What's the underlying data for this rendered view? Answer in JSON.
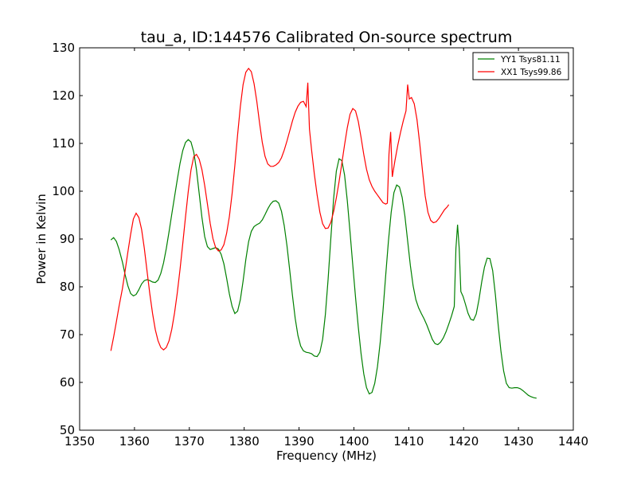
{
  "chart_data": {
    "type": "line",
    "title": "tau_a, ID:144576 Calibrated On-source spectrum",
    "xlabel": "Frequency (MHz)",
    "ylabel": "Power in Kelvin",
    "xlim": [
      1350,
      1440
    ],
    "ylim": [
      50,
      130
    ],
    "xticks": [
      1350,
      1360,
      1370,
      1380,
      1390,
      1400,
      1410,
      1420,
      1430,
      1440
    ],
    "yticks": [
      50,
      60,
      70,
      80,
      90,
      100,
      110,
      120,
      130
    ],
    "grid": false,
    "legend_position": "top-right",
    "series": [
      {
        "name": "YY1 Tsys81.11",
        "color": "#008000",
        "points": [
          [
            1355.7,
            89.8
          ],
          [
            1356.2,
            90.3
          ],
          [
            1356.7,
            89.5
          ],
          [
            1357.2,
            87.8
          ],
          [
            1357.8,
            85.2
          ],
          [
            1358.3,
            82.5
          ],
          [
            1358.8,
            80.2
          ],
          [
            1359.3,
            78.6
          ],
          [
            1359.8,
            78.1
          ],
          [
            1360.3,
            78.4
          ],
          [
            1360.8,
            79.4
          ],
          [
            1361.3,
            80.6
          ],
          [
            1361.8,
            81.3
          ],
          [
            1362.3,
            81.5
          ],
          [
            1362.8,
            81.3
          ],
          [
            1363.3,
            81.0
          ],
          [
            1363.8,
            80.9
          ],
          [
            1364.3,
            81.4
          ],
          [
            1364.8,
            82.8
          ],
          [
            1365.3,
            85.0
          ],
          [
            1365.8,
            88.0
          ],
          [
            1366.3,
            91.5
          ],
          [
            1366.8,
            95.2
          ],
          [
            1367.3,
            98.8
          ],
          [
            1367.8,
            102.4
          ],
          [
            1368.3,
            105.8
          ],
          [
            1368.8,
            108.5
          ],
          [
            1369.3,
            110.2
          ],
          [
            1369.8,
            110.8
          ],
          [
            1370.3,
            110.3
          ],
          [
            1370.8,
            108.2
          ],
          [
            1371.3,
            104.5
          ],
          [
            1371.8,
            99.5
          ],
          [
            1372.3,
            94.5
          ],
          [
            1372.8,
            90.5
          ],
          [
            1373.3,
            88.4
          ],
          [
            1373.8,
            87.8
          ],
          [
            1374.3,
            88.0
          ],
          [
            1374.8,
            88.2
          ],
          [
            1375.3,
            87.9
          ],
          [
            1375.8,
            86.8
          ],
          [
            1376.3,
            84.8
          ],
          [
            1376.8,
            81.8
          ],
          [
            1377.3,
            78.5
          ],
          [
            1377.8,
            75.9
          ],
          [
            1378.3,
            74.4
          ],
          [
            1378.8,
            74.9
          ],
          [
            1379.3,
            77.3
          ],
          [
            1379.8,
            81.2
          ],
          [
            1380.3,
            85.7
          ],
          [
            1380.8,
            89.4
          ],
          [
            1381.3,
            91.6
          ],
          [
            1381.8,
            92.6
          ],
          [
            1382.3,
            93.0
          ],
          [
            1382.8,
            93.3
          ],
          [
            1383.3,
            94.0
          ],
          [
            1383.8,
            95.1
          ],
          [
            1384.3,
            96.3
          ],
          [
            1384.8,
            97.3
          ],
          [
            1385.3,
            97.9
          ],
          [
            1385.8,
            98.0
          ],
          [
            1386.3,
            97.5
          ],
          [
            1386.8,
            95.8
          ],
          [
            1387.3,
            92.8
          ],
          [
            1387.8,
            88.6
          ],
          [
            1388.3,
            83.5
          ],
          [
            1388.8,
            78.2
          ],
          [
            1389.3,
            73.4
          ],
          [
            1389.8,
            69.8
          ],
          [
            1390.3,
            67.6
          ],
          [
            1390.8,
            66.6
          ],
          [
            1391.3,
            66.3
          ],
          [
            1391.8,
            66.2
          ],
          [
            1392.3,
            66.0
          ],
          [
            1392.8,
            65.5
          ],
          [
            1393.3,
            65.4
          ],
          [
            1393.8,
            66.3
          ],
          [
            1394.3,
            69.0
          ],
          [
            1394.8,
            74.2
          ],
          [
            1395.3,
            81.6
          ],
          [
            1395.8,
            90.2
          ],
          [
            1396.3,
            98.4
          ],
          [
            1396.8,
            104.2
          ],
          [
            1397.3,
            106.8
          ],
          [
            1397.8,
            106.4
          ],
          [
            1398.3,
            103.4
          ],
          [
            1398.8,
            98.0
          ],
          [
            1399.3,
            91.4
          ],
          [
            1399.8,
            84.5
          ],
          [
            1400.3,
            77.8
          ],
          [
            1400.8,
            71.6
          ],
          [
            1401.3,
            66.1
          ],
          [
            1401.8,
            61.8
          ],
          [
            1402.3,
            58.9
          ],
          [
            1402.8,
            57.6
          ],
          [
            1403.3,
            57.9
          ],
          [
            1403.8,
            59.8
          ],
          [
            1404.3,
            63.3
          ],
          [
            1404.8,
            68.4
          ],
          [
            1405.3,
            74.9
          ],
          [
            1405.8,
            82.4
          ],
          [
            1406.3,
            89.6
          ],
          [
            1406.8,
            95.6
          ],
          [
            1407.3,
            99.7
          ],
          [
            1407.8,
            101.3
          ],
          [
            1408.3,
            100.9
          ],
          [
            1408.8,
            98.7
          ],
          [
            1409.3,
            94.8
          ],
          [
            1409.8,
            89.6
          ],
          [
            1410.3,
            84.4
          ],
          [
            1410.8,
            80.2
          ],
          [
            1411.3,
            77.3
          ],
          [
            1411.8,
            75.6
          ],
          [
            1412.3,
            74.4
          ],
          [
            1412.8,
            73.3
          ],
          [
            1413.3,
            72.0
          ],
          [
            1413.8,
            70.5
          ],
          [
            1414.3,
            69.0
          ],
          [
            1414.8,
            68.1
          ],
          [
            1415.3,
            67.9
          ],
          [
            1415.8,
            68.4
          ],
          [
            1416.3,
            69.3
          ],
          [
            1416.8,
            70.6
          ],
          [
            1417.3,
            72.2
          ],
          [
            1417.8,
            73.9
          ],
          [
            1418.3,
            75.9
          ],
          [
            1418.6,
            88.0
          ],
          [
            1418.9,
            93.0
          ],
          [
            1419.2,
            88.0
          ],
          [
            1419.5,
            79.0
          ],
          [
            1419.9,
            78.0
          ],
          [
            1420.3,
            76.5
          ],
          [
            1420.8,
            74.5
          ],
          [
            1421.3,
            73.2
          ],
          [
            1421.8,
            73.0
          ],
          [
            1422.3,
            74.3
          ],
          [
            1422.8,
            77.3
          ],
          [
            1423.3,
            81.0
          ],
          [
            1423.8,
            84.1
          ],
          [
            1424.3,
            86.0
          ],
          [
            1424.8,
            85.9
          ],
          [
            1425.3,
            83.4
          ],
          [
            1425.8,
            78.3
          ],
          [
            1426.3,
            72.1
          ],
          [
            1426.8,
            66.6
          ],
          [
            1427.3,
            62.4
          ],
          [
            1427.8,
            59.8
          ],
          [
            1428.3,
            58.9
          ],
          [
            1428.8,
            58.8
          ],
          [
            1429.3,
            58.9
          ],
          [
            1429.8,
            58.9
          ],
          [
            1430.3,
            58.7
          ],
          [
            1430.8,
            58.3
          ],
          [
            1431.3,
            57.8
          ],
          [
            1431.8,
            57.3
          ],
          [
            1432.3,
            57.0
          ],
          [
            1432.8,
            56.8
          ],
          [
            1433.3,
            56.7
          ]
        ]
      },
      {
        "name": "XX1 Tsys99.86",
        "color": "#ff0000",
        "points": [
          [
            1355.7,
            66.6
          ],
          [
            1356.2,
            69.5
          ],
          [
            1356.7,
            72.7
          ],
          [
            1357.2,
            76.0
          ],
          [
            1357.8,
            79.6
          ],
          [
            1358.3,
            83.4
          ],
          [
            1358.8,
            87.3
          ],
          [
            1359.3,
            91.0
          ],
          [
            1359.8,
            94.2
          ],
          [
            1360.3,
            95.4
          ],
          [
            1360.8,
            94.5
          ],
          [
            1361.3,
            92.0
          ],
          [
            1361.8,
            88.0
          ],
          [
            1362.3,
            83.2
          ],
          [
            1362.8,
            78.5
          ],
          [
            1363.3,
            74.4
          ],
          [
            1363.8,
            71.0
          ],
          [
            1364.3,
            68.7
          ],
          [
            1364.8,
            67.3
          ],
          [
            1365.3,
            66.8
          ],
          [
            1365.8,
            67.3
          ],
          [
            1366.3,
            68.7
          ],
          [
            1366.8,
            71.1
          ],
          [
            1367.3,
            74.5
          ],
          [
            1367.8,
            78.7
          ],
          [
            1368.3,
            83.6
          ],
          [
            1368.8,
            89.0
          ],
          [
            1369.3,
            94.6
          ],
          [
            1369.8,
            99.9
          ],
          [
            1370.3,
            104.4
          ],
          [
            1370.8,
            107.2
          ],
          [
            1371.3,
            107.7
          ],
          [
            1371.8,
            106.7
          ],
          [
            1372.3,
            104.5
          ],
          [
            1372.8,
            101.2
          ],
          [
            1373.3,
            97.3
          ],
          [
            1373.8,
            93.3
          ],
          [
            1374.3,
            90.1
          ],
          [
            1374.8,
            88.2
          ],
          [
            1375.3,
            87.5
          ],
          [
            1375.8,
            87.7
          ],
          [
            1376.3,
            88.8
          ],
          [
            1376.8,
            91.2
          ],
          [
            1377.3,
            94.7
          ],
          [
            1377.8,
            99.5
          ],
          [
            1378.3,
            105.4
          ],
          [
            1378.8,
            111.8
          ],
          [
            1379.3,
            117.7
          ],
          [
            1379.8,
            122.3
          ],
          [
            1380.3,
            124.9
          ],
          [
            1380.8,
            125.7
          ],
          [
            1381.3,
            125.0
          ],
          [
            1381.8,
            122.5
          ],
          [
            1382.3,
            118.8
          ],
          [
            1382.8,
            114.3
          ],
          [
            1383.3,
            110.2
          ],
          [
            1383.8,
            107.3
          ],
          [
            1384.3,
            105.7
          ],
          [
            1384.8,
            105.2
          ],
          [
            1385.3,
            105.2
          ],
          [
            1385.8,
            105.5
          ],
          [
            1386.3,
            106.0
          ],
          [
            1386.8,
            107.0
          ],
          [
            1387.3,
            108.6
          ],
          [
            1387.8,
            110.5
          ],
          [
            1388.3,
            112.6
          ],
          [
            1388.8,
            114.7
          ],
          [
            1389.3,
            116.5
          ],
          [
            1389.8,
            117.8
          ],
          [
            1390.3,
            118.6
          ],
          [
            1390.8,
            118.8
          ],
          [
            1391.3,
            117.7
          ],
          [
            1391.6,
            122.7
          ],
          [
            1391.9,
            113.0
          ],
          [
            1392.3,
            108.5
          ],
          [
            1392.8,
            103.5
          ],
          [
            1393.3,
            99.2
          ],
          [
            1393.8,
            95.6
          ],
          [
            1394.3,
            93.2
          ],
          [
            1394.8,
            92.2
          ],
          [
            1395.3,
            92.3
          ],
          [
            1395.8,
            93.5
          ],
          [
            1396.3,
            95.7
          ],
          [
            1396.8,
            98.6
          ],
          [
            1397.3,
            102.0
          ],
          [
            1397.8,
            105.8
          ],
          [
            1398.3,
            109.7
          ],
          [
            1398.8,
            113.3
          ],
          [
            1399.3,
            116.1
          ],
          [
            1399.8,
            117.3
          ],
          [
            1400.3,
            116.8
          ],
          [
            1400.8,
            114.6
          ],
          [
            1401.3,
            111.3
          ],
          [
            1401.8,
            107.7
          ],
          [
            1402.3,
            104.6
          ],
          [
            1402.8,
            102.4
          ],
          [
            1403.3,
            101.0
          ],
          [
            1403.8,
            100.0
          ],
          [
            1404.3,
            99.2
          ],
          [
            1404.8,
            98.4
          ],
          [
            1405.3,
            97.6
          ],
          [
            1405.8,
            97.3
          ],
          [
            1406.1,
            97.5
          ],
          [
            1406.4,
            107.8
          ],
          [
            1406.7,
            112.4
          ],
          [
            1407.0,
            103.0
          ],
          [
            1407.5,
            106.5
          ],
          [
            1408.0,
            109.6
          ],
          [
            1408.5,
            112.3
          ],
          [
            1409.0,
            114.7
          ],
          [
            1409.5,
            116.8
          ],
          [
            1409.8,
            122.3
          ],
          [
            1410.1,
            119.3
          ],
          [
            1410.5,
            119.6
          ],
          [
            1411.0,
            118.3
          ],
          [
            1411.5,
            115.0
          ],
          [
            1412.0,
            110.0
          ],
          [
            1412.5,
            104.3
          ],
          [
            1413.0,
            99.0
          ],
          [
            1413.5,
            95.6
          ],
          [
            1414.0,
            93.9
          ],
          [
            1414.5,
            93.4
          ],
          [
            1415.0,
            93.6
          ],
          [
            1415.5,
            94.3
          ],
          [
            1416.0,
            95.2
          ],
          [
            1416.5,
            96.1
          ],
          [
            1417.0,
            96.7
          ],
          [
            1417.3,
            97.2
          ]
        ]
      }
    ]
  }
}
